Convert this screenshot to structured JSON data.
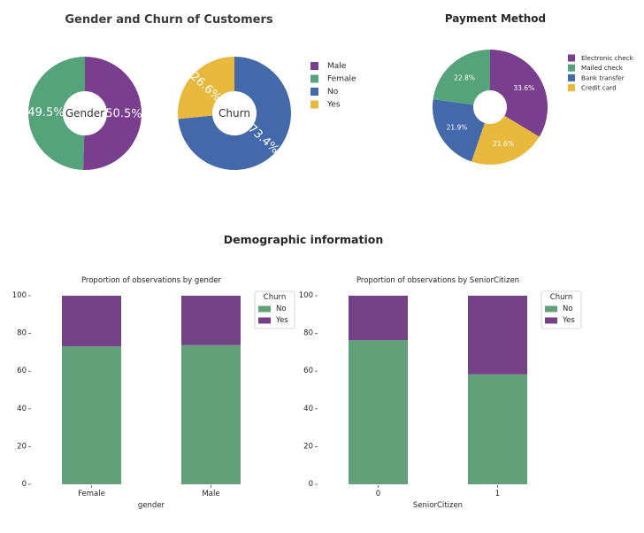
{
  "figure": {
    "donut_title": "Gender and Churn of Customers",
    "demo_title": "Demographic information"
  },
  "colors": {
    "purple": "#7a3e8f",
    "green": "#55a37a",
    "blue": "#4469aa",
    "yellow": "#e8b93c",
    "bar_green": "#62a07a",
    "bar_purple": "#744187"
  },
  "chart_data": [
    {
      "type": "pie",
      "center_label": "Gender",
      "slices": [
        {
          "label": "Male",
          "value": 50.5,
          "text": "50.5%",
          "color": "#7a3e8f"
        },
        {
          "label": "Female",
          "value": 49.5,
          "text": "49.5%",
          "color": "#55a37a"
        }
      ]
    },
    {
      "type": "pie",
      "center_label": "Churn",
      "slices": [
        {
          "label": "No",
          "value": 73.4,
          "text": "73.4%",
          "color": "#4469aa"
        },
        {
          "label": "Yes",
          "value": 26.6,
          "text": "26.6%",
          "color": "#e8b93c"
        }
      ],
      "legend": {
        "placement": "right",
        "entries": [
          {
            "label": "Male",
            "color": "#7a3e8f"
          },
          {
            "label": "Female",
            "color": "#55a37a"
          },
          {
            "label": "No",
            "color": "#4469aa"
          },
          {
            "label": "Yes",
            "color": "#e8b93c"
          }
        ]
      }
    },
    {
      "type": "pie",
      "title": "Payment Method",
      "slices": [
        {
          "label": "Electronic check",
          "value": 33.6,
          "text": "33.6%",
          "color": "#7a3e8f"
        },
        {
          "label": "Credit card",
          "value": 21.6,
          "text": "21.6%",
          "color": "#e8b93c"
        },
        {
          "label": "Bank transfer",
          "value": 21.9,
          "text": "21.9%",
          "color": "#4469aa"
        },
        {
          "label": "Mailed check",
          "value": 22.8,
          "text": "22.8%",
          "color": "#55a37a"
        }
      ],
      "legend": {
        "placement": "right",
        "entries": [
          {
            "label": "Electronic check",
            "color": "#7a3e8f"
          },
          {
            "label": "Mailed check",
            "color": "#55a37a"
          },
          {
            "label": "Bank transfer",
            "color": "#4469aa"
          },
          {
            "label": "Credit card",
            "color": "#e8b93c"
          }
        ]
      }
    },
    {
      "type": "bar",
      "stacked": true,
      "title": "Proportion of observations by gender",
      "xlabel": "gender",
      "ylabel": "",
      "categories": [
        "Female",
        "Male"
      ],
      "ylim": [
        0,
        100
      ],
      "yticks": [
        0,
        20,
        40,
        60,
        80,
        100
      ],
      "series": [
        {
          "name": "No",
          "values": [
            73.1,
            73.8
          ],
          "color": "#62a07a"
        },
        {
          "name": "Yes",
          "values": [
            26.9,
            26.2
          ],
          "color": "#744187"
        }
      ],
      "legend": {
        "title": "Churn",
        "placement": "top-right"
      }
    },
    {
      "type": "bar",
      "stacked": true,
      "title": "Proportion of observations by SeniorCitizen",
      "xlabel": "SeniorCitizen",
      "ylabel": "",
      "categories": [
        "0",
        "1"
      ],
      "ylim": [
        0,
        100
      ],
      "yticks": [
        0,
        20,
        40,
        60,
        80,
        100
      ],
      "series": [
        {
          "name": "No",
          "values": [
            76.4,
            58.3
          ],
          "color": "#62a07a"
        },
        {
          "name": "Yes",
          "values": [
            23.6,
            41.7
          ],
          "color": "#744187"
        }
      ],
      "legend": {
        "title": "Churn",
        "placement": "top-right"
      }
    }
  ]
}
